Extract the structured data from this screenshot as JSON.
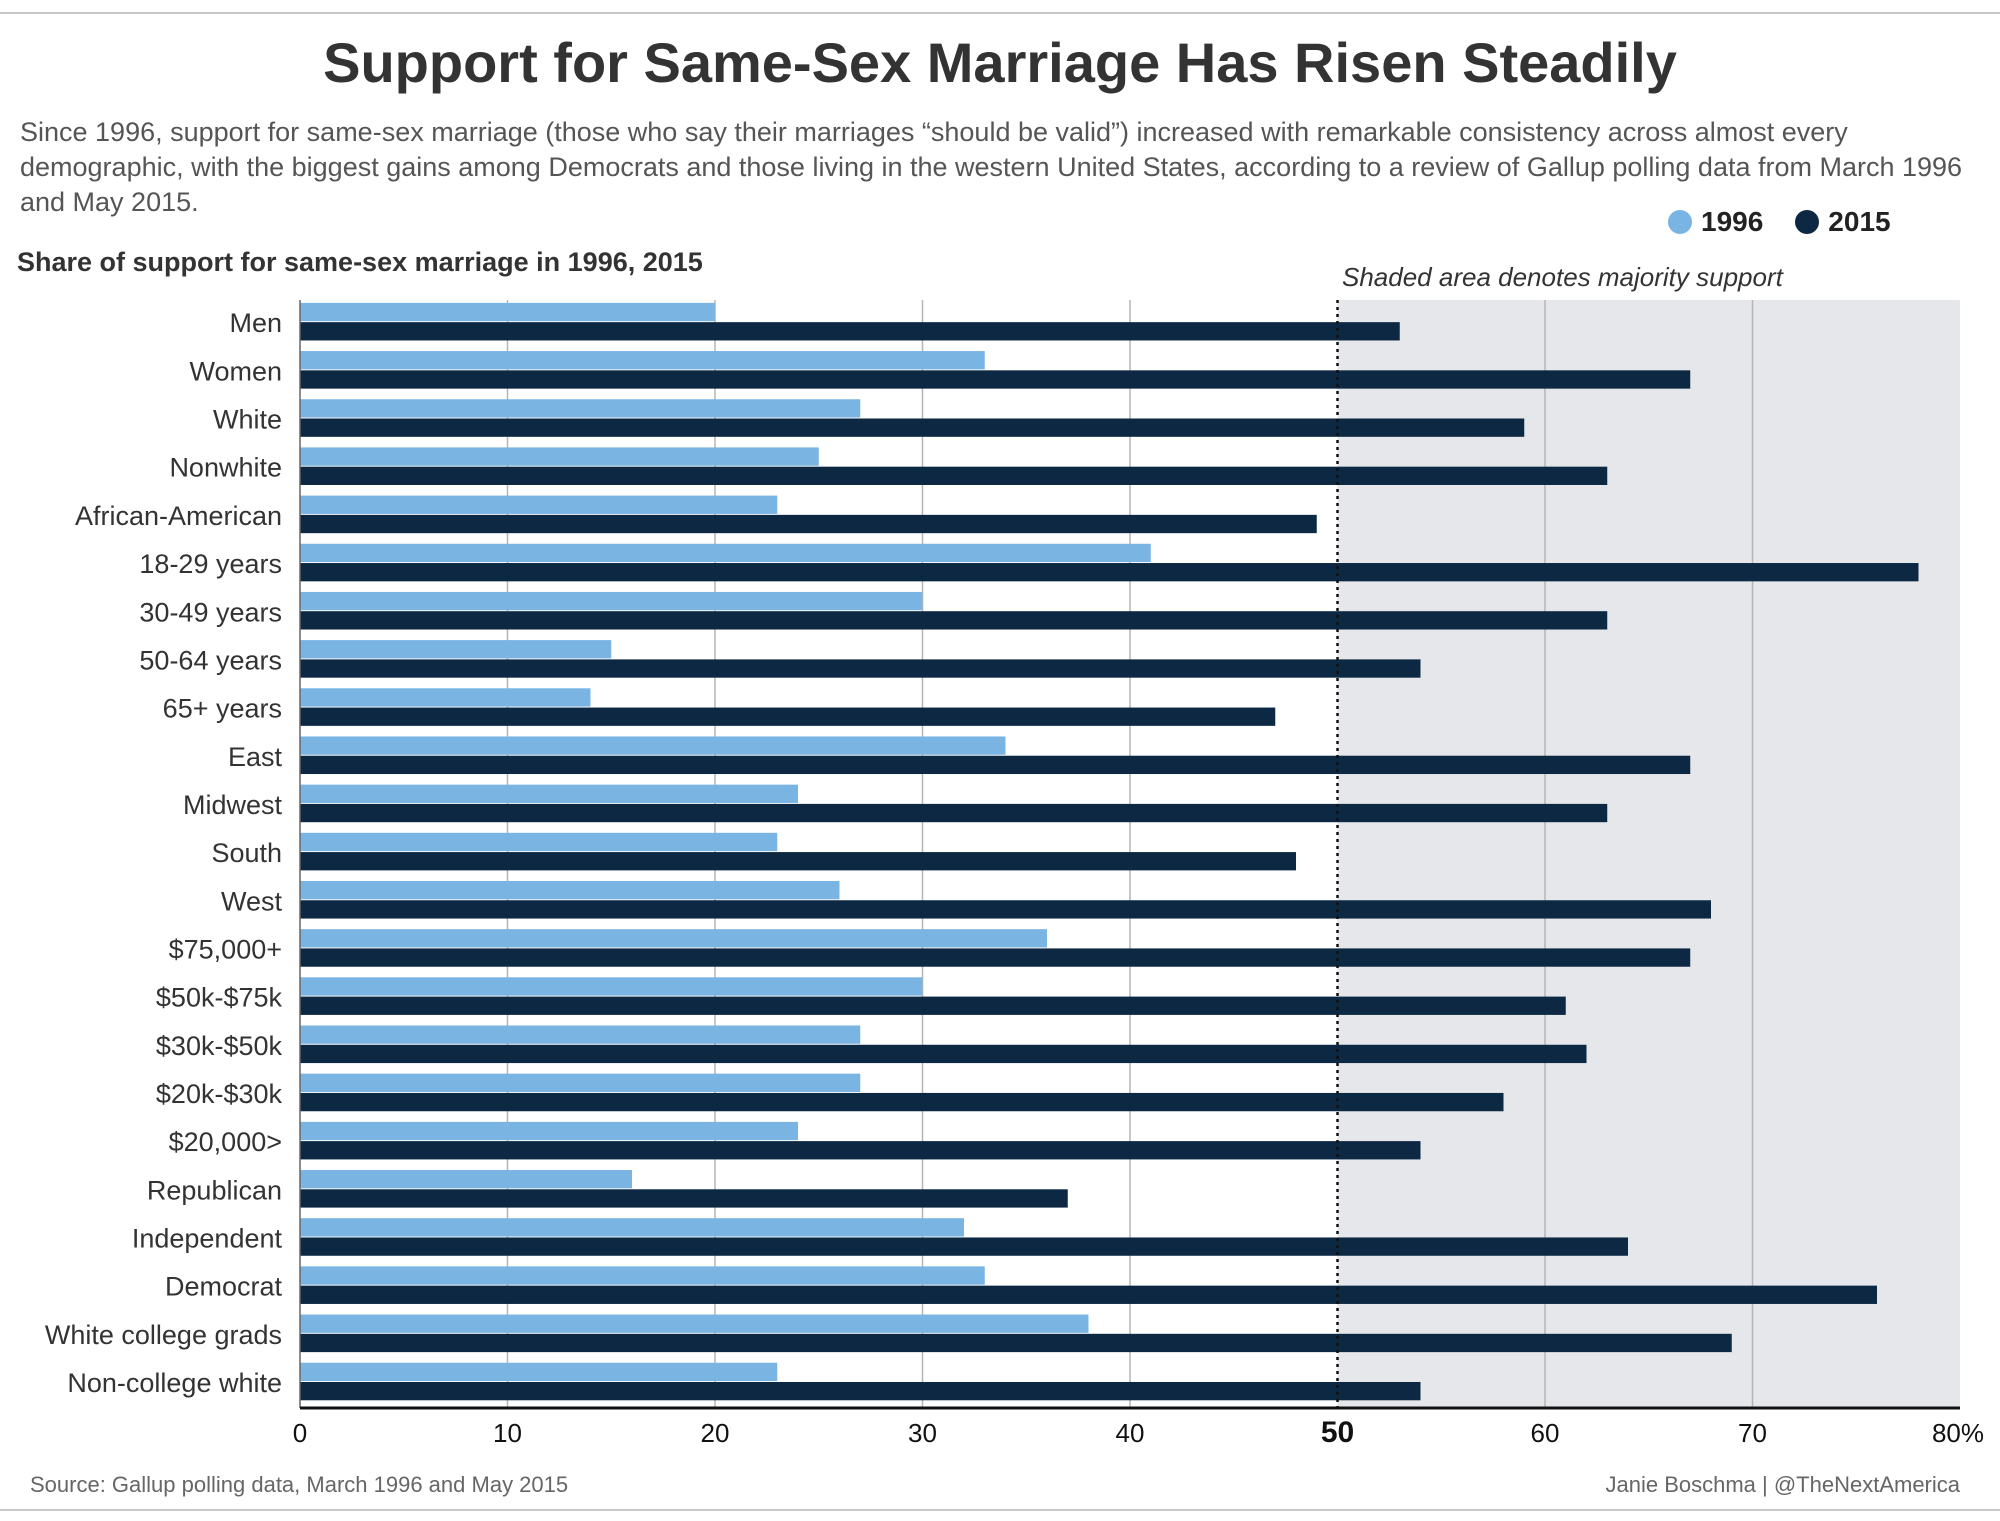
{
  "title": "Support for Same-Sex Marriage Has Risen Steadily",
  "subtitle": "Since 1996, support for same-sex marriage (those who say their marriages “should be valid”) increased with remarkable consistency across almost every demographic, with the biggest gains among Democrats and those living in the western United States, according to a review of Gallup polling data from March 1996 and May 2015.",
  "chart_heading": "Share of support for same-sex marriage in 1996, 2015",
  "shade_note": "Shaded area denotes majority support",
  "source": "Source: Gallup polling data, March 1996 and May 2015",
  "credit": "Janie Boschma | @TheNextAmerica",
  "colors": {
    "series_1996": "#7ab4e3",
    "series_2015": "#0c2843",
    "shade": "#e6e7ea",
    "grid": "#b5b5b5"
  },
  "legend": [
    {
      "label": "1996",
      "color": "#7ab4e3"
    },
    {
      "label": "2015",
      "color": "#0c2843"
    }
  ],
  "chart_data": {
    "type": "bar",
    "orientation": "horizontal",
    "title": "Share of support for same-sex marriage in 1996, 2015",
    "categories": [
      "Men",
      "Women",
      "White",
      "Nonwhite",
      "African-American",
      "18-29 years",
      "30-49 years",
      "50-64 years",
      "65+ years",
      "East",
      "Midwest",
      "South",
      "West",
      "$75,000+",
      "$50k-$75k",
      "$30k-$50k",
      "$20k-$30k",
      "$20,000>",
      "Republican",
      "Independent",
      "Democrat",
      "White college grads",
      "Non-college white"
    ],
    "series": [
      {
        "name": "1996",
        "values": [
          20,
          33,
          27,
          25,
          23,
          41,
          30,
          15,
          14,
          34,
          24,
          23,
          26,
          36,
          30,
          27,
          27,
          24,
          16,
          32,
          33,
          38,
          23
        ]
      },
      {
        "name": "2015",
        "values": [
          53,
          67,
          59,
          63,
          49,
          78,
          63,
          54,
          47,
          67,
          63,
          48,
          68,
          67,
          61,
          62,
          58,
          54,
          37,
          64,
          76,
          69,
          54
        ]
      }
    ],
    "xlim": [
      0,
      80
    ],
    "ticks": [
      "0",
      "10",
      "20",
      "30",
      "40",
      "50",
      "60",
      "70",
      "80%"
    ],
    "reference_line": 50,
    "shaded_from": 50,
    "grid": true,
    "legend_position": "top-right"
  }
}
